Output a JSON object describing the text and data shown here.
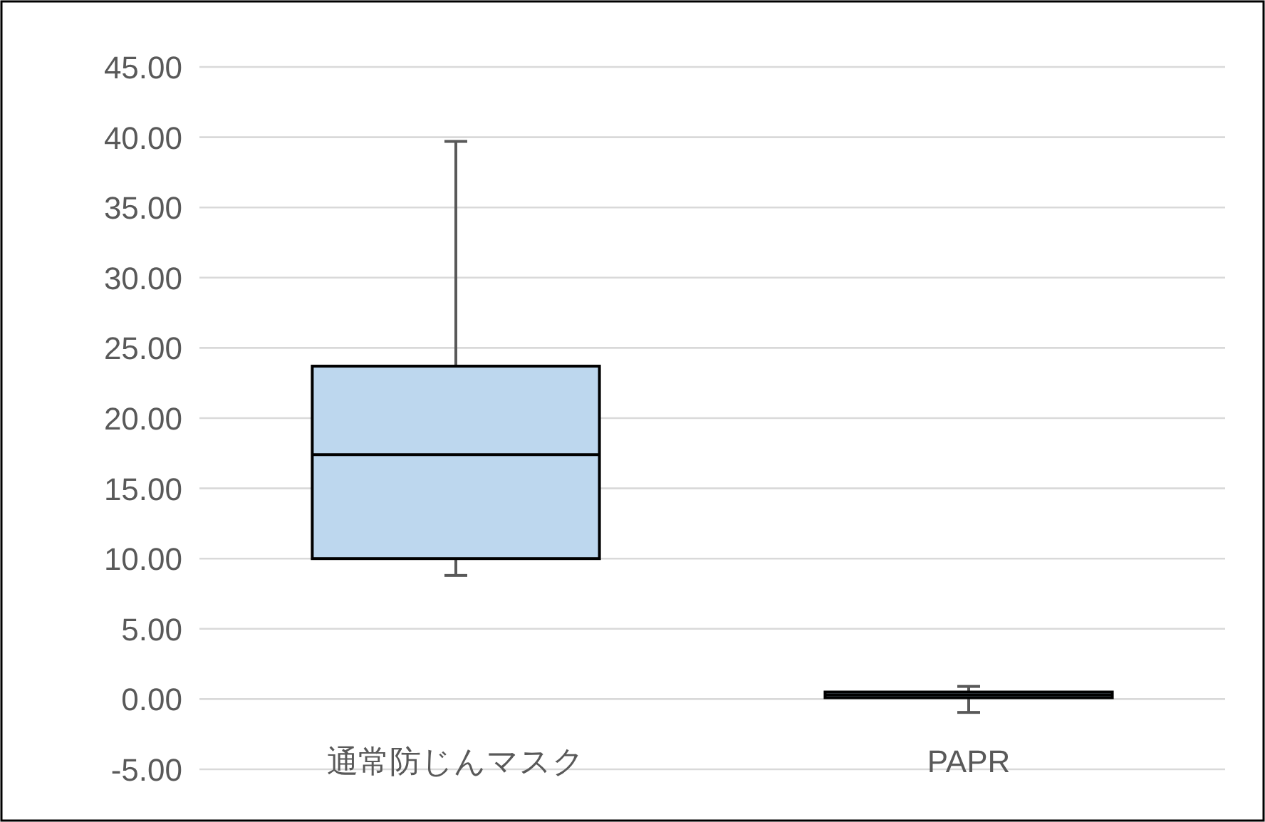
{
  "chart_data": {
    "type": "box",
    "categories": [
      "通常防じんマスク",
      "PAPR"
    ],
    "boxes": [
      {
        "low": 8.8,
        "q1": 10.0,
        "median": 17.4,
        "q3": 23.7,
        "high": 39.7
      },
      {
        "low": -0.95,
        "q1": 0.1,
        "median": 0.3,
        "q3": 0.5,
        "high": 0.9
      }
    ],
    "colors": [
      "#bdd7ee",
      "#bdd7ee"
    ],
    "ylim": [
      -5,
      45
    ],
    "yticks": [
      {
        "value": -5,
        "label": "-5.00"
      },
      {
        "value": 0,
        "label": "0.00"
      },
      {
        "value": 5,
        "label": "5.00"
      },
      {
        "value": 10,
        "label": "10.00"
      },
      {
        "value": 15,
        "label": "15.00"
      },
      {
        "value": 20,
        "label": "20.00"
      },
      {
        "value": 25,
        "label": "25.00"
      },
      {
        "value": 30,
        "label": "30.00"
      },
      {
        "value": 35,
        "label": "35.00"
      },
      {
        "value": 40,
        "label": "40.00"
      },
      {
        "value": 45,
        "label": "45.00"
      }
    ],
    "grid": "y"
  }
}
